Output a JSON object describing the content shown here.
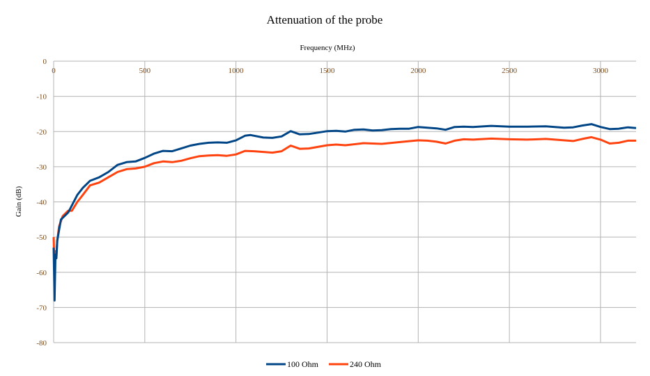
{
  "chart_data": {
    "type": "line",
    "title": "Attenuation of the probe",
    "xlabel": "Frequency (MHz)",
    "ylabel": "Gain (dB)",
    "xlim": [
      0,
      3195
    ],
    "ylim": [
      -80,
      0
    ],
    "x_ticks": [
      0,
      500,
      1000,
      1500,
      2000,
      2500,
      3000
    ],
    "y_ticks": [
      0,
      -10,
      -20,
      -30,
      -40,
      -50,
      -60,
      -70,
      -80
    ],
    "x_axis_position": "top",
    "grid": true,
    "legend": "bottom",
    "series": [
      {
        "name": "100 Ohm",
        "color": "#004586",
        "x": [
          0,
          5,
          10,
          15,
          20,
          30,
          40,
          60,
          80,
          100,
          130,
          160,
          200,
          250,
          300,
          350,
          400,
          450,
          500,
          550,
          600,
          650,
          700,
          750,
          800,
          850,
          900,
          950,
          1000,
          1050,
          1080,
          1150,
          1200,
          1250,
          1300,
          1350,
          1400,
          1450,
          1500,
          1550,
          1600,
          1650,
          1700,
          1750,
          1800,
          1850,
          1900,
          1950,
          2000,
          2050,
          2100,
          2150,
          2200,
          2250,
          2300,
          2400,
          2500,
          2600,
          2700,
          2800,
          2850,
          2900,
          2950,
          3000,
          3050,
          3100,
          3150,
          3195
        ],
        "y": [
          -53,
          -68,
          -55,
          -56,
          -51,
          -48,
          -45,
          -44,
          -43,
          -41,
          -38,
          -36,
          -34,
          -33,
          -31.5,
          -29.5,
          -28.7,
          -28.5,
          -27.5,
          -26.3,
          -25.5,
          -25.6,
          -24.8,
          -24,
          -23.5,
          -23.2,
          -23.1,
          -23.2,
          -22.5,
          -21.2,
          -21,
          -21.7,
          -21.8,
          -21.4,
          -19.9,
          -20.8,
          -20.7,
          -20.3,
          -19.9,
          -19.8,
          -20,
          -19.5,
          -19.4,
          -19.7,
          -19.6,
          -19.3,
          -19.2,
          -19.2,
          -18.7,
          -18.9,
          -19.1,
          -19.5,
          -18.7,
          -18.6,
          -18.7,
          -18.4,
          -18.6,
          -18.6,
          -18.5,
          -18.9,
          -18.8,
          -18.3,
          -17.9,
          -18.7,
          -19.3,
          -19.2,
          -18.8,
          -19
        ]
      },
      {
        "name": "240 Ohm",
        "color": "#ff420e",
        "x": [
          0,
          5,
          10,
          15,
          20,
          30,
          50,
          80,
          100,
          130,
          160,
          200,
          250,
          300,
          350,
          400,
          450,
          500,
          550,
          600,
          650,
          700,
          750,
          800,
          850,
          900,
          950,
          1000,
          1050,
          1100,
          1150,
          1200,
          1250,
          1300,
          1350,
          1400,
          1500,
          1550,
          1600,
          1700,
          1800,
          1900,
          2000,
          2050,
          2100,
          2150,
          2200,
          2250,
          2300,
          2400,
          2500,
          2600,
          2700,
          2800,
          2850,
          2900,
          2950,
          3000,
          3050,
          3100,
          3150,
          3195
        ],
        "y": [
          -50,
          -60,
          -54,
          -56,
          -51,
          -47,
          -44,
          -42.5,
          -42.5,
          -40,
          -38,
          -35.3,
          -34.5,
          -33,
          -31.5,
          -30.7,
          -30.5,
          -30,
          -29,
          -28.5,
          -28.7,
          -28.3,
          -27.6,
          -27,
          -26.8,
          -26.7,
          -26.9,
          -26.5,
          -25.5,
          -25.6,
          -25.8,
          -26,
          -25.6,
          -24,
          -24.9,
          -24.8,
          -23.9,
          -23.7,
          -23.9,
          -23.3,
          -23.5,
          -23,
          -22.5,
          -22.6,
          -22.9,
          -23.4,
          -22.6,
          -22.2,
          -22.3,
          -22,
          -22.2,
          -22.3,
          -22.1,
          -22.5,
          -22.7,
          -22.1,
          -21.6,
          -22.3,
          -23.4,
          -23.2,
          -22.6,
          -22.6
        ]
      }
    ]
  }
}
